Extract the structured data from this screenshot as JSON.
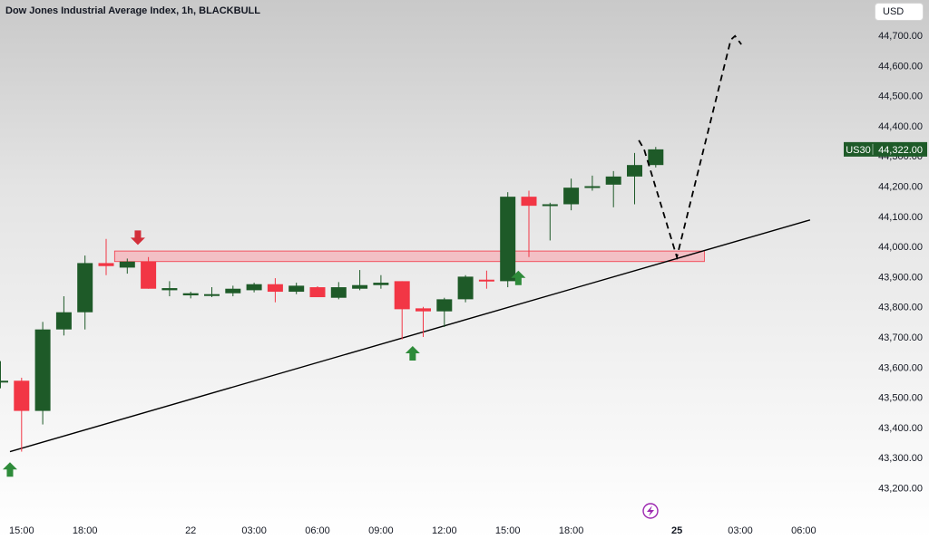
{
  "header": {
    "title": "Dow Jones Industrial Average Index, 1h, BLACKBULL",
    "currency": "USD"
  },
  "colors": {
    "bull": "#1e5a28",
    "bear": "#f23645",
    "up_arrow": "#2e8b3a",
    "down_arrow": "#d32f3a",
    "zone_fill": "#f5b8be",
    "zone_stroke": "#f23645",
    "trendline": "#000000",
    "price_label_bg": "#1e5a28"
  },
  "chart_data": {
    "type": "candlestick",
    "symbol_label": "US30",
    "last_price": "44,322.00",
    "y_ticks": [
      "44,700.00",
      "44,600.00",
      "44,500.00",
      "44,400.00",
      "44,300.00",
      "44,200.00",
      "44,100.00",
      "44,000.00",
      "43,900.00",
      "43,800.00",
      "43,700.00",
      "43,600.00",
      "43,500.00",
      "43,400.00",
      "43,300.00",
      "43,200.00"
    ],
    "y_tick_values": [
      44700,
      44600,
      44500,
      44400,
      44300,
      44200,
      44100,
      44000,
      43900,
      43800,
      43700,
      43600,
      43500,
      43400,
      43300,
      43200
    ],
    "ylim": [
      43140,
      44760
    ],
    "x_ticks": [
      {
        "label": "15:00",
        "bar": 1,
        "bold": false
      },
      {
        "label": "18:00",
        "bar": 4,
        "bold": false
      },
      {
        "label": "22",
        "bar": 9,
        "bold": false
      },
      {
        "label": "03:00",
        "bar": 12,
        "bold": false
      },
      {
        "label": "06:00",
        "bar": 15,
        "bold": false
      },
      {
        "label": "09:00",
        "bar": 18,
        "bold": false
      },
      {
        "label": "12:00",
        "bar": 21,
        "bold": false
      },
      {
        "label": "15:00",
        "bar": 24,
        "bold": false
      },
      {
        "label": "18:00",
        "bar": 27,
        "bold": false
      },
      {
        "label": "25",
        "bar": 32,
        "bold": true
      },
      {
        "label": "03:00",
        "bar": 35,
        "bold": false
      },
      {
        "label": "06:00",
        "bar": 38,
        "bold": false
      }
    ],
    "candles": [
      {
        "o": 43550,
        "h": 43620,
        "l": 43530,
        "c": 43555
      },
      {
        "o": 43555,
        "h": 43565,
        "l": 43320,
        "c": 43455
      },
      {
        "o": 43455,
        "h": 43750,
        "l": 43410,
        "c": 43725
      },
      {
        "o": 43725,
        "h": 43835,
        "l": 43705,
        "c": 43782
      },
      {
        "o": 43782,
        "h": 43970,
        "l": 43725,
        "c": 43945
      },
      {
        "o": 43945,
        "h": 44025,
        "l": 43905,
        "c": 43935
      },
      {
        "o": 43930,
        "h": 43960,
        "l": 43910,
        "c": 43950
      },
      {
        "o": 43950,
        "h": 43965,
        "l": 43860,
        "c": 43860
      },
      {
        "o": 43855,
        "h": 43885,
        "l": 43835,
        "c": 43862
      },
      {
        "o": 43838,
        "h": 43850,
        "l": 43828,
        "c": 43845
      },
      {
        "o": 43838,
        "h": 43865,
        "l": 43832,
        "c": 43842
      },
      {
        "o": 43845,
        "h": 43870,
        "l": 43835,
        "c": 43860
      },
      {
        "o": 43855,
        "h": 43880,
        "l": 43848,
        "c": 43875
      },
      {
        "o": 43875,
        "h": 43895,
        "l": 43815,
        "c": 43850
      },
      {
        "o": 43850,
        "h": 43880,
        "l": 43842,
        "c": 43870
      },
      {
        "o": 43865,
        "h": 43868,
        "l": 43832,
        "c": 43832
      },
      {
        "o": 43830,
        "h": 43882,
        "l": 43825,
        "c": 43865
      },
      {
        "o": 43860,
        "h": 43922,
        "l": 43855,
        "c": 43872
      },
      {
        "o": 43872,
        "h": 43905,
        "l": 43860,
        "c": 43880
      },
      {
        "o": 43885,
        "h": 43885,
        "l": 43692,
        "c": 43792
      },
      {
        "o": 43795,
        "h": 43800,
        "l": 43700,
        "c": 43785
      },
      {
        "o": 43785,
        "h": 43830,
        "l": 43733,
        "c": 43825
      },
      {
        "o": 43825,
        "h": 43905,
        "l": 43815,
        "c": 43900
      },
      {
        "o": 43890,
        "h": 43920,
        "l": 43860,
        "c": 43885
      },
      {
        "o": 43885,
        "h": 44180,
        "l": 43865,
        "c": 44165
      },
      {
        "o": 44165,
        "h": 44185,
        "l": 43965,
        "c": 44135
      },
      {
        "o": 44140,
        "h": 44145,
        "l": 44020,
        "c": 44140
      },
      {
        "o": 44140,
        "h": 44225,
        "l": 44120,
        "c": 44195
      },
      {
        "o": 44200,
        "h": 44235,
        "l": 44185,
        "c": 44200
      },
      {
        "o": 44205,
        "h": 44250,
        "l": 44130,
        "c": 44232
      },
      {
        "o": 44232,
        "h": 44310,
        "l": 44140,
        "c": 44270
      },
      {
        "o": 44270,
        "h": 44330,
        "l": 44262,
        "c": 44322
      }
    ],
    "annotations": {
      "resistance_zone": {
        "from_bar": 5.4,
        "to_bar": 33.3,
        "top": 43985,
        "bottom": 43950
      },
      "trendline": {
        "from": {
          "bar": 0.45,
          "price": 43320
        },
        "to": {
          "bar": 38.3,
          "price": 44088
        }
      },
      "projection": [
        {
          "bar": 30.2,
          "price": 44352
        },
        {
          "bar": 30.45,
          "price": 44322
        },
        {
          "bar": 32.0,
          "price": 43965
        },
        {
          "bar": 34.55,
          "price": 44685
        },
        {
          "bar": 34.75,
          "price": 44698
        },
        {
          "bar": 35.05,
          "price": 44670
        }
      ],
      "up_arrows": [
        {
          "bar": 0.45,
          "price": 43285
        },
        {
          "bar": 19.5,
          "price": 43670
        },
        {
          "bar": 24.5,
          "price": 43920
        }
      ],
      "down_arrows": [
        {
          "bar": 6.5,
          "price": 44005
        }
      ]
    }
  }
}
